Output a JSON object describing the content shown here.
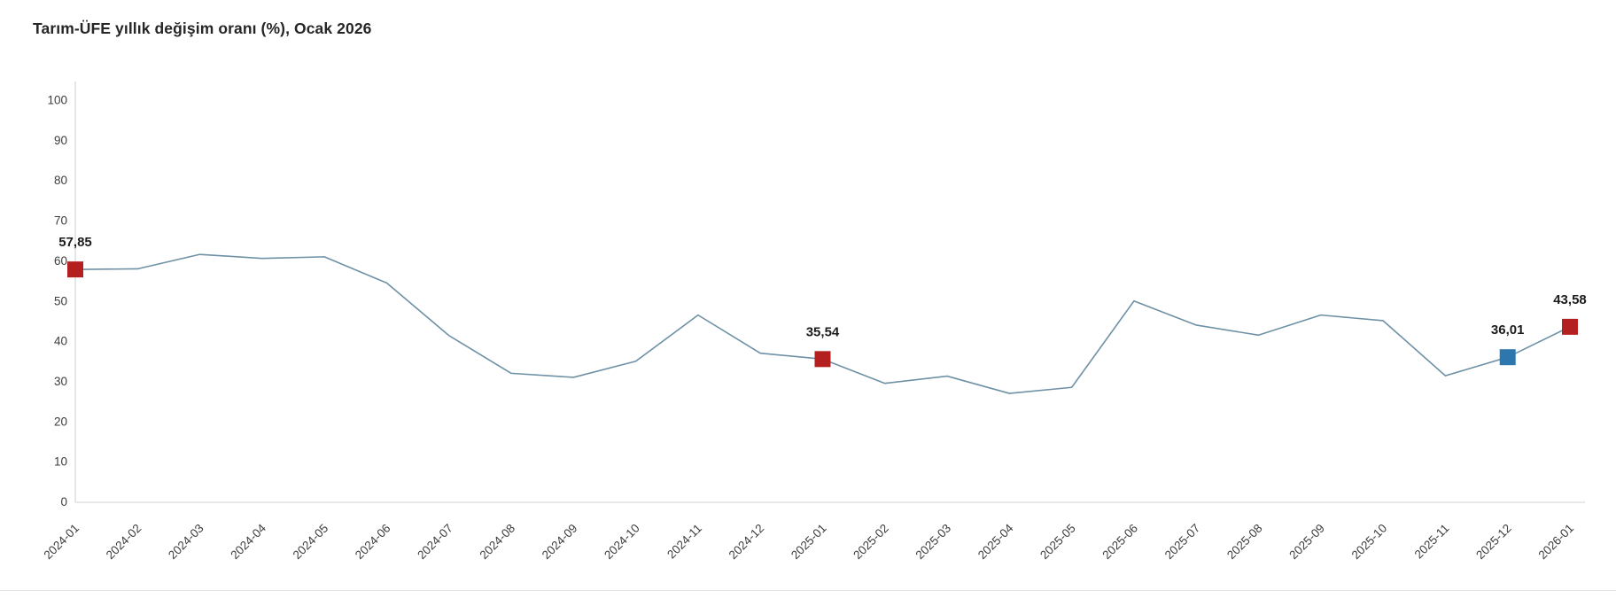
{
  "page": {
    "title": "Tarım-ÜFE yıllık değişim oranı (%), Ocak 2026"
  },
  "colors": {
    "line": "#6e91a5",
    "marker_red": "#b41f1f",
    "marker_blue": "#2e77ae",
    "axis": "#d9d9d9",
    "tick_text": "#3d3d3d",
    "data_label_text": "#1c1c1c",
    "title_text": "#262626"
  },
  "chart_data": {
    "type": "line",
    "title": "Tarım-ÜFE yıllık değişim oranı (%), Ocak 2026",
    "x": [
      "2024-01",
      "2024-02",
      "2024-03",
      "2024-04",
      "2024-05",
      "2024-06",
      "2024-07",
      "2024-08",
      "2024-09",
      "2024-10",
      "2024-11",
      "2024-12",
      "2025-01",
      "2025-02",
      "2025-03",
      "2025-04",
      "2025-05",
      "2025-06",
      "2025-07",
      "2025-08",
      "2025-09",
      "2025-10",
      "2025-11",
      "2025-12",
      "2026-01"
    ],
    "series": [
      {
        "name": "Tarım-ÜFE yıllık değişim oranı (%)",
        "values": [
          57.85,
          58.0,
          61.6,
          60.6,
          61.0,
          54.5,
          41.4,
          32.0,
          31.0,
          35.0,
          46.5,
          37.0,
          35.54,
          29.5,
          31.3,
          27.0,
          28.5,
          50.0,
          44.0,
          41.5,
          46.5,
          45.1,
          31.4,
          36.01,
          43.58
        ]
      }
    ],
    "ylim": [
      0,
      100
    ],
    "yticks": [
      0,
      10,
      20,
      30,
      40,
      50,
      60,
      70,
      80,
      90,
      100
    ],
    "grid": false,
    "legend": false,
    "annotations": [
      {
        "x": "2024-01",
        "index": 0,
        "value": 57.85,
        "label": "57,85",
        "color": "#b41f1f"
      },
      {
        "x": "2025-01",
        "index": 12,
        "value": 35.54,
        "label": "35,54",
        "color": "#b41f1f"
      },
      {
        "x": "2025-12",
        "index": 23,
        "value": 36.01,
        "label": "36,01",
        "color": "#2e77ae"
      },
      {
        "x": "2026-01",
        "index": 24,
        "value": 43.58,
        "label": "43,58",
        "color": "#b41f1f"
      }
    ]
  }
}
